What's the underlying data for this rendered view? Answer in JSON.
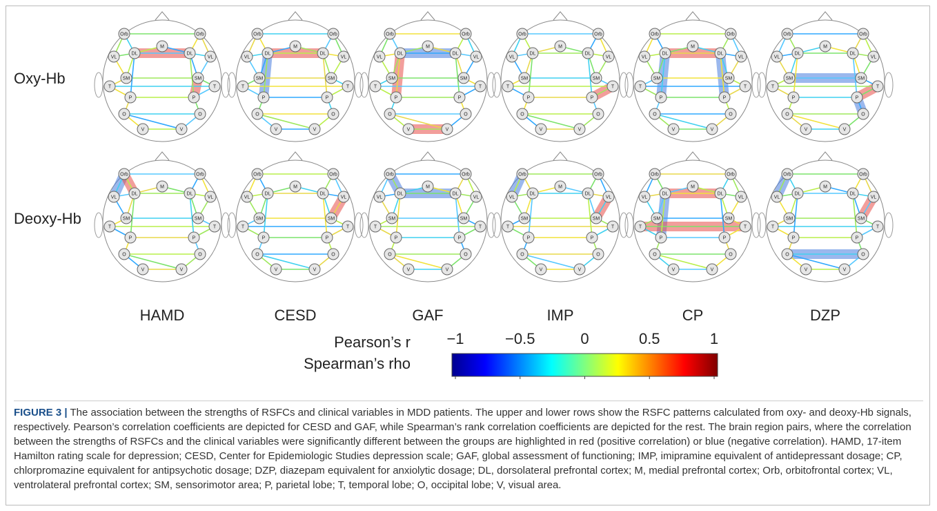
{
  "figure": {
    "row_labels": [
      "Oxy-Hb",
      "Deoxy-Hb"
    ],
    "column_labels": [
      "HAMD",
      "CESD",
      "GAF",
      "IMP",
      "CP",
      "DZP"
    ],
    "node_labels": [
      "Orb",
      "Orb",
      "M",
      "DL",
      "DL",
      "VL",
      "VL",
      "SM",
      "SM",
      "T",
      "T",
      "P",
      "P",
      "O",
      "O",
      "V",
      "V"
    ],
    "colorbar": {
      "labels": [
        "Pearson’s r",
        "Spearman’s rho"
      ],
      "lim": [
        -1,
        1
      ],
      "ticks": [
        {
          "value": -1,
          "label": "−1"
        },
        {
          "value": -0.5,
          "label": "−0.5"
        },
        0,
        0.5,
        1
      ]
    },
    "caption": {
      "label": "FIGURE 3 |",
      "text": "The association between the strengths of RSFCs and clinical variables in MDD patients. The upper and lower rows show the RSFC patterns calculated from oxy- and deoxy-Hb signals, respectively. Pearson’s correlation coefficients are depicted for CESD and GAF, while Spearman’s rank correlation coefficients are depicted for the rest. The brain region pairs, where the correlation between the strengths of RSFCs and the clinical variables were significantly different between the groups are highlighted in red (positive correlation) or blue (negative correlation). HAMD, 17-item Hamilton rating scale for depression; CESD, Center for Epidemiologic Studies depression scale; GAF, global assessment of functioning; IMP, imipramine equivalent of antidepressant dosage; CP, chlorpromazine equivalent for antipsychotic dosage; DZP, diazepam equivalent for anxiolytic dosage; DL, dorsolateral prefrontal cortex; M, medial prefrontal cortex; Orb, orbitofrontal cortex; VL, ventrolateral prefrontal cortex; SM, sensorimotor area; P, parietal lobe; T, temporal lobe; O, occipital lobe; V, visual area."
    }
  }
}
